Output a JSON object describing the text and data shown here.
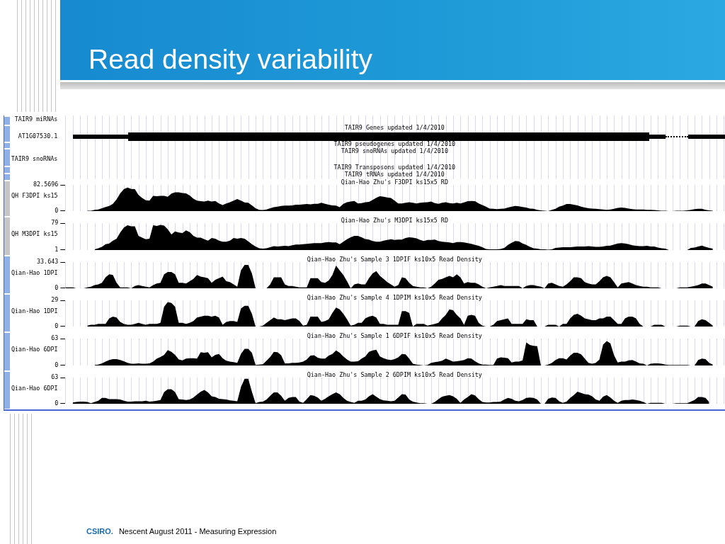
{
  "chart_data": [
    {
      "type": "area",
      "title": "Read density variability",
      "annotations": [
        "TAIR9 miRNAs",
        "AT1G07530.1",
        "TAIR9 snoRNAs",
        "TAIR9 Genes updated 1/4/2010",
        "TAIR9 pseudogenes updated 1/4/2010",
        "TAIR9 snoRNAs updated 1/4/2010",
        "TAIR9 Transposons updated 1/4/2010",
        "TAIR9 tRNAs updated 1/4/2010"
      ],
      "ylabel": "QH F3DPI ks15",
      "ylim": [
        0,
        82.5696
      ],
      "yticks": [
        0,
        82.5696
      ],
      "grid": "x",
      "tick_labels": "y",
      "categories": [
        null,
        null,
        null,
        null,
        null,
        null,
        null,
        null,
        null,
        null,
        null,
        null,
        null,
        null,
        null,
        null,
        null,
        null,
        null,
        null,
        null,
        null,
        null,
        null,
        null,
        null,
        null,
        null,
        null,
        null,
        null,
        null,
        null,
        null,
        null,
        null,
        null,
        null,
        null,
        null,
        null,
        null,
        null,
        null,
        null,
        null,
        null,
        null,
        null,
        null,
        null,
        null,
        null,
        null,
        null,
        null,
        null,
        null,
        null,
        null,
        null,
        null,
        null,
        null,
        null,
        null,
        null,
        null,
        null,
        null,
        null,
        null,
        null,
        null,
        null,
        null,
        null,
        null,
        null,
        null,
        null,
        null,
        null,
        null,
        null,
        null,
        null,
        null,
        null,
        null,
        null,
        null,
        null,
        null,
        null,
        null,
        null,
        null,
        null,
        null,
        null,
        null,
        null,
        null,
        null,
        null,
        null,
        null,
        null,
        null,
        null,
        null,
        null,
        null,
        null,
        null,
        null,
        null,
        null,
        null,
        null,
        null,
        null,
        null,
        null,
        null,
        null,
        null,
        null,
        null,
        null,
        null,
        null,
        null,
        null,
        null,
        null,
        null,
        null,
        null,
        null,
        null,
        null,
        null,
        null,
        null,
        null,
        null,
        null,
        null,
        null,
        null,
        null,
        null,
        null,
        null,
        null,
        null,
        null,
        null,
        null,
        null,
        null,
        null,
        null,
        null,
        null,
        null,
        null,
        null,
        null,
        null,
        null,
        null,
        null,
        null,
        null,
        null,
        null,
        null,
        null
      ],
      "series": [
        {
          "name": "Qian-Hao Zhu's F3DPI ks15x5 RD",
          "color": "#000000",
          "values": [
            null,
            null,
            null,
            null,
            null,
            null,
            1,
            1,
            4,
            5,
            9,
            13,
            16,
            23,
            37,
            56,
            69,
            74,
            70,
            69,
            51,
            41,
            34,
            33,
            48,
            47,
            48,
            48,
            45,
            55,
            59,
            59,
            57,
            56,
            49,
            39,
            33,
            31,
            30,
            33,
            30,
            32,
            24,
            19,
            24,
            28,
            33,
            38,
            33,
            27,
            26,
            18,
            9,
            4,
            3,
            5,
            9,
            12,
            14,
            16,
            17,
            17,
            18,
            20,
            20,
            21,
            22,
            21,
            23,
            23,
            26,
            23,
            20,
            18,
            17,
            12,
            23,
            28,
            30,
            32,
            24,
            25,
            28,
            29,
            35,
            42,
            47,
            45,
            43,
            41,
            33,
            24,
            24,
            26,
            28,
            26,
            24,
            26,
            27,
            28,
            30,
            25,
            23,
            26,
            28,
            25,
            24,
            26,
            24,
            27,
            31,
            32,
            31,
            24,
            19,
            14,
            8,
            7,
            6,
            7,
            8,
            11,
            14,
            16,
            15,
            13,
            11,
            8,
            7,
            4,
            2,
            1,
            0,
            4,
            7,
            14,
            17,
            22,
            22,
            20,
            18,
            14,
            11,
            9,
            8,
            7,
            6,
            5,
            4,
            5,
            7,
            10,
            11,
            10,
            8,
            6,
            5,
            5,
            5,
            4,
            4,
            3,
            2,
            1,
            1,
            0,
            0,
            1,
            1,
            1,
            2,
            4,
            6,
            7,
            7,
            4,
            2,
            1,
            null,
            null,
            null
          ]
        }
      ]
    },
    {
      "type": "area",
      "ylabel": "QH M3DPI ks15",
      "ylim": [
        1,
        79
      ],
      "yticks": [
        1,
        79
      ],
      "grid": "x",
      "tick_labels": "y",
      "categories": [
        null,
        null,
        null,
        null,
        null,
        null,
        null,
        null,
        null,
        null,
        null,
        null,
        null,
        null,
        null,
        null,
        null,
        null,
        null,
        null,
        null,
        null,
        null,
        null,
        null,
        null,
        null,
        null,
        null,
        null,
        null,
        null,
        null,
        null,
        null,
        null,
        null,
        null,
        null,
        null,
        null,
        null,
        null,
        null,
        null,
        null,
        null,
        null,
        null,
        null,
        null,
        null,
        null,
        null,
        null,
        null,
        null,
        null,
        null,
        null,
        null,
        null,
        null,
        null,
        null,
        null,
        null,
        null,
        null,
        null,
        null,
        null,
        null,
        null,
        null,
        null,
        null,
        null,
        null,
        null,
        null,
        null,
        null,
        null,
        null,
        null,
        null,
        null,
        null,
        null,
        null,
        null,
        null,
        null,
        null,
        null,
        null,
        null,
        null,
        null,
        null,
        null,
        null,
        null,
        null,
        null,
        null,
        null,
        null,
        null,
        null,
        null,
        null,
        null,
        null,
        null,
        null,
        null,
        null,
        null,
        null,
        null,
        null,
        null,
        null,
        null,
        null,
        null,
        null,
        null,
        null,
        null,
        null,
        null,
        null,
        null,
        null,
        null,
        null,
        null,
        null,
        null,
        null,
        null,
        null,
        null,
        null,
        null,
        null,
        null,
        null,
        null,
        null,
        null,
        null,
        null,
        null,
        null,
        null,
        null,
        null,
        null,
        null,
        null,
        null,
        null,
        null,
        null,
        null,
        null,
        null,
        null,
        null,
        null,
        null,
        null,
        null,
        null,
        null,
        null,
        null
      ],
      "series": [
        {
          "name": "Qian-Hao Zhu's M3DPI ks15x5 RD",
          "color": "#000000",
          "values": [
            null,
            null,
            null,
            null,
            null,
            null,
            null,
            null,
            3,
            6,
            10,
            18,
            20,
            28,
            34,
            52,
            66,
            73,
            70,
            70,
            42,
            37,
            32,
            34,
            73,
            71,
            74,
            72,
            61,
            46,
            55,
            52,
            50,
            58,
            53,
            42,
            37,
            37,
            32,
            28,
            36,
            34,
            28,
            25,
            25,
            28,
            36,
            34,
            36,
            34,
            26,
            18,
            11,
            6,
            5,
            6,
            9,
            12,
            11,
            12,
            13,
            12,
            15,
            17,
            17,
            18,
            19,
            20,
            21,
            21,
            21,
            23,
            24,
            23,
            23,
            18,
            25,
            32,
            38,
            42,
            42,
            38,
            33,
            31,
            27,
            25,
            25,
            28,
            30,
            32,
            30,
            31,
            31,
            36,
            38,
            37,
            35,
            30,
            27,
            30,
            30,
            31,
            27,
            25,
            24,
            23,
            21,
            24,
            24,
            23,
            21,
            19,
            16,
            13,
            9,
            4,
            3,
            3,
            3,
            4,
            7,
            16,
            22,
            27,
            26,
            20,
            16,
            10,
            6,
            5,
            3,
            3,
            2,
            3,
            7,
            8,
            9,
            9,
            9,
            10,
            11,
            11,
            11,
            12,
            11,
            10,
            10,
            11,
            13,
            14,
            17,
            20,
            21,
            20,
            18,
            15,
            13,
            12,
            12,
            13,
            11,
            11,
            8,
            6,
            5,
            1,
            1,
            1,
            1,
            1,
            1,
            7,
            8,
            11,
            14,
            10,
            7,
            5,
            null,
            null,
            null
          ]
        }
      ]
    },
    {
      "type": "area",
      "ylabel": "Qian-Hao 1DPI",
      "ylim": [
        0,
        33.643
      ],
      "yticks": [
        0,
        33.643
      ],
      "grid": "x",
      "tick_labels": "y",
      "categories": [
        null,
        null,
        null,
        null,
        null,
        null,
        null,
        null,
        null,
        null,
        null,
        null,
        null,
        null,
        null,
        null,
        null,
        null,
        null,
        null,
        null,
        null,
        null,
        null,
        null,
        null,
        null,
        null,
        null,
        null,
        null,
        null,
        null,
        null,
        null,
        null,
        null,
        null,
        null,
        null,
        null,
        null,
        null,
        null,
        null,
        null,
        null,
        null,
        null,
        null,
        null,
        null,
        null,
        null,
        null,
        null,
        null,
        null,
        null,
        null,
        null,
        null,
        null,
        null,
        null,
        null,
        null,
        null,
        null,
        null,
        null,
        null,
        null,
        null,
        null,
        null,
        null,
        null,
        null,
        null,
        null,
        null,
        null,
        null,
        null,
        null,
        null,
        null,
        null,
        null,
        null,
        null,
        null,
        null,
        null,
        null,
        null,
        null,
        null,
        null,
        null,
        null,
        null,
        null,
        null,
        null,
        null,
        null,
        null,
        null,
        null,
        null,
        null,
        null,
        null,
        null,
        null,
        null,
        null,
        null,
        null,
        null,
        null,
        null,
        null,
        null,
        null,
        null,
        null,
        null,
        null,
        null,
        null,
        null,
        null,
        null,
        null,
        null,
        null,
        null,
        null,
        null,
        null,
        null,
        null,
        null,
        null,
        null,
        null,
        null,
        null,
        null,
        null,
        null,
        null,
        null,
        null,
        null,
        null,
        null,
        null,
        null,
        null,
        null,
        null,
        null,
        null,
        null,
        null,
        null,
        null,
        null,
        null,
        null,
        null,
        null,
        null,
        null,
        null,
        null,
        null
      ],
      "series": [
        {
          "name": "Qian-Hao Zhu's Sample 3 1DPIF ks10x5 Read Density",
          "color": "#000000",
          "values": [
            1,
            1,
            1,
            0,
            0,
            0,
            1,
            2,
            4,
            5,
            7,
            14,
            18,
            17,
            7,
            1,
            1,
            1,
            0,
            3,
            4,
            3,
            2,
            1,
            4,
            6,
            7,
            18,
            21,
            21,
            18,
            7,
            7,
            6,
            9,
            12,
            17,
            15,
            14,
            13,
            7,
            11,
            13,
            15,
            9,
            8,
            5,
            2,
            23,
            30,
            30,
            19,
            0,
            0,
            0,
            0,
            5,
            14,
            14,
            14,
            5,
            3,
            3,
            2,
            1,
            1,
            1,
            13,
            13,
            13,
            8,
            7,
            10,
            17,
            29,
            23,
            17,
            9,
            0,
            5,
            6,
            5,
            5,
            13,
            19,
            22,
            16,
            12,
            8,
            5,
            2,
            4,
            14,
            13,
            7,
            3,
            2,
            1,
            1,
            0,
            2,
            6,
            11,
            12,
            14,
            16,
            14,
            18,
            14,
            6,
            8,
            7,
            7,
            5,
            2,
            0,
            1,
            2,
            3,
            4,
            3,
            3,
            3,
            3,
            3,
            0,
            3,
            4,
            4,
            3,
            2,
            0,
            6,
            7,
            5,
            3,
            2,
            5,
            9,
            14,
            14,
            13,
            8,
            6,
            5,
            5,
            9,
            14,
            16,
            14,
            8,
            1,
            6,
            7,
            8,
            6,
            4,
            3,
            2,
            2,
            1,
            1,
            1,
            0,
            0,
            0,
            0,
            0,
            1,
            1,
            1,
            2,
            3,
            4,
            6,
            6,
            4,
            2,
            null,
            null,
            null
          ]
        }
      ]
    },
    {
      "type": "area",
      "ylabel": "Qian-Hao 1DPI",
      "ylim": [
        0,
        29
      ],
      "yticks": [
        0,
        29
      ],
      "grid": "x",
      "tick_labels": "y",
      "categories": [
        null,
        null,
        null,
        null,
        null,
        null,
        null,
        null,
        null,
        null,
        null,
        null,
        null,
        null,
        null,
        null,
        null,
        null,
        null,
        null,
        null,
        null,
        null,
        null,
        null,
        null,
        null,
        null,
        null,
        null,
        null,
        null,
        null,
        null,
        null,
        null,
        null,
        null,
        null,
        null,
        null,
        null,
        null,
        null,
        null,
        null,
        null,
        null,
        null,
        null,
        null,
        null,
        null,
        null,
        null,
        null,
        null,
        null,
        null,
        null,
        null,
        null,
        null,
        null,
        null,
        null,
        null,
        null,
        null,
        null,
        null,
        null,
        null,
        null,
        null,
        null,
        null,
        null,
        null,
        null,
        null,
        null,
        null,
        null,
        null,
        null,
        null,
        null,
        null,
        null,
        null,
        null,
        null,
        null,
        null,
        null,
        null,
        null,
        null,
        null,
        null,
        null,
        null,
        null,
        null,
        null,
        null,
        null,
        null,
        null,
        null,
        null,
        null,
        null,
        null,
        null,
        null,
        null,
        null,
        null,
        null,
        null,
        null,
        null,
        null,
        null,
        null,
        null,
        null,
        null,
        null,
        null,
        null,
        null,
        null,
        null,
        null,
        null,
        null,
        null,
        null,
        null,
        null,
        null,
        null,
        null,
        null,
        null,
        null,
        null,
        null,
        null,
        null,
        null,
        null,
        null,
        null,
        null,
        null,
        null,
        null,
        null,
        null,
        null,
        null,
        null,
        null,
        null,
        null,
        null,
        null,
        null,
        null,
        null,
        null,
        null,
        null,
        null,
        null,
        null,
        null
      ],
      "series": [
        {
          "name": "Qian-Hao Zhu's Sample 4 1DPIM ks10x5 Read Density",
          "color": "#000000",
          "values": [
            null,
            null,
            null,
            null,
            null,
            null,
            1,
            2,
            2,
            3,
            3,
            3,
            9,
            11,
            10,
            5,
            3,
            2,
            2,
            3,
            4,
            3,
            2,
            3,
            3,
            3,
            4,
            22,
            27,
            26,
            22,
            4,
            4,
            3,
            4,
            6,
            10,
            11,
            12,
            12,
            11,
            12,
            10,
            2,
            5,
            6,
            6,
            5,
            20,
            23,
            23,
            14,
            0,
            0,
            1,
            4,
            7,
            10,
            8,
            8,
            7,
            8,
            9,
            9,
            6,
            1,
            2,
            11,
            11,
            11,
            5,
            6,
            8,
            15,
            21,
            19,
            14,
            8,
            1,
            2,
            4,
            4,
            9,
            11,
            12,
            10,
            3,
            3,
            2,
            2,
            2,
            2,
            17,
            17,
            15,
            0,
            3,
            3,
            3,
            1,
            2,
            3,
            4,
            9,
            13,
            19,
            18,
            13,
            9,
            2,
            12,
            13,
            12,
            4,
            1,
            0,
            0,
            2,
            6,
            7,
            8,
            9,
            3,
            3,
            3,
            3,
            8,
            7,
            7,
            0,
            0,
            0,
            2,
            2,
            2,
            0,
            3,
            3,
            9,
            13,
            14,
            12,
            9,
            8,
            7,
            7,
            9,
            9,
            11,
            11,
            7,
            3,
            3,
            9,
            11,
            11,
            9,
            3,
            0,
            0,
            0,
            2,
            2,
            2,
            0,
            0,
            0,
            0,
            1,
            1,
            1,
            0,
            0,
            6,
            8,
            7,
            4,
            1,
            null,
            null,
            null
          ]
        }
      ]
    },
    {
      "type": "area",
      "ylabel": "Qian-Hao 6DPI",
      "ylim": [
        0,
        63
      ],
      "yticks": [
        0,
        63
      ],
      "grid": "x",
      "tick_labels": "y",
      "categories": [
        null,
        null,
        null,
        null,
        null,
        null,
        null,
        null,
        null,
        null,
        null,
        null,
        null,
        null,
        null,
        null,
        null,
        null,
        null,
        null,
        null,
        null,
        null,
        null,
        null,
        null,
        null,
        null,
        null,
        null,
        null,
        null,
        null,
        null,
        null,
        null,
        null,
        null,
        null,
        null,
        null,
        null,
        null,
        null,
        null,
        null,
        null,
        null,
        null,
        null,
        null,
        null,
        null,
        null,
        null,
        null,
        null,
        null,
        null,
        null,
        null,
        null,
        null,
        null,
        null,
        null,
        null,
        null,
        null,
        null,
        null,
        null,
        null,
        null,
        null,
        null,
        null,
        null,
        null,
        null,
        null,
        null,
        null,
        null,
        null,
        null,
        null,
        null,
        null,
        null,
        null,
        null,
        null,
        null,
        null,
        null,
        null,
        null,
        null,
        null,
        null,
        null,
        null,
        null,
        null,
        null,
        null,
        null,
        null,
        null,
        null,
        null,
        null,
        null,
        null,
        null,
        null,
        null,
        null,
        null,
        null,
        null,
        null,
        null,
        null,
        null,
        null,
        null,
        null,
        null,
        null,
        null,
        null,
        null,
        null,
        null,
        null,
        null,
        null,
        null,
        null,
        null,
        null,
        null,
        null,
        null,
        null,
        null,
        null,
        null,
        null,
        null,
        null,
        null,
        null,
        null,
        null,
        null,
        null,
        null,
        null,
        null,
        null,
        null,
        null,
        null,
        null,
        null,
        null,
        null,
        null,
        null,
        null,
        null,
        null,
        null,
        null,
        null,
        null,
        null,
        null
      ],
      "series": [
        {
          "name": "Qian-Hao Zhu's Sample 1 6DPIF ks10x5 Read Density",
          "color": "#000000",
          "values": [
            null,
            null,
            null,
            null,
            null,
            null,
            null,
            null,
            1,
            2,
            5,
            9,
            13,
            15,
            15,
            13,
            10,
            6,
            4,
            4,
            5,
            4,
            4,
            5,
            9,
            16,
            20,
            25,
            36,
            32,
            25,
            14,
            12,
            16,
            17,
            17,
            16,
            31,
            30,
            31,
            19,
            25,
            27,
            17,
            11,
            9,
            8,
            6,
            27,
            39,
            39,
            30,
            1,
            2,
            3,
            11,
            20,
            32,
            31,
            24,
            5,
            5,
            6,
            6,
            7,
            9,
            14,
            23,
            24,
            18,
            16,
            16,
            23,
            27,
            35,
            30,
            21,
            14,
            9,
            9,
            10,
            16,
            21,
            32,
            35,
            37,
            21,
            17,
            14,
            13,
            15,
            19,
            27,
            26,
            16,
            4,
            2,
            1,
            0,
            1,
            6,
            8,
            9,
            11,
            16,
            13,
            9,
            10,
            11,
            13,
            17,
            16,
            10,
            5,
            2,
            2,
            1,
            1,
            16,
            19,
            18,
            17,
            7,
            9,
            9,
            12,
            54,
            48,
            46,
            45,
            0,
            0,
            2,
            6,
            13,
            17,
            17,
            14,
            23,
            30,
            30,
            26,
            16,
            6,
            4,
            6,
            14,
            49,
            57,
            52,
            24,
            7,
            9,
            9,
            12,
            13,
            9,
            5,
            4,
            0,
            4,
            5,
            5,
            4,
            2,
            1,
            1,
            1,
            1,
            1,
            1,
            0,
            0,
            13,
            16,
            15,
            6,
            2,
            null,
            null,
            null
          ]
        }
      ]
    },
    {
      "type": "area",
      "ylabel": "Qian-Hao 6DPI",
      "ylim": [
        0,
        63
      ],
      "yticks": [
        0,
        63
      ],
      "grid": "x",
      "tick_labels": "y",
      "annotations": [
        "CSIRO.",
        "Nescent August 2011 - Measuring Expression"
      ],
      "categories": [
        null,
        null,
        null,
        null,
        null,
        null,
        null,
        null,
        null,
        null,
        null,
        null,
        null,
        null,
        null,
        null,
        null,
        null,
        null,
        null,
        null,
        null,
        null,
        null,
        null,
        null,
        null,
        null,
        null,
        null,
        null,
        null,
        null,
        null,
        null,
        null,
        null,
        null,
        null,
        null,
        null,
        null,
        null,
        null,
        null,
        null,
        null,
        null,
        null,
        null,
        null,
        null,
        null,
        null,
        null,
        null,
        null,
        null,
        null,
        null,
        null,
        null,
        null,
        null,
        null,
        null,
        null,
        null,
        null,
        null,
        null,
        null,
        null,
        null,
        null,
        null,
        null,
        null,
        null,
        null,
        null,
        null,
        null,
        null,
        null,
        null,
        null,
        null,
        null,
        null,
        null,
        null,
        null,
        null,
        null,
        null,
        null,
        null,
        null,
        null,
        null,
        null,
        null,
        null,
        null,
        null,
        null,
        null,
        null,
        null,
        null,
        null,
        null,
        null,
        null,
        null,
        null,
        null,
        null,
        null,
        null,
        null,
        null,
        null,
        null,
        null,
        null,
        null,
        null,
        null,
        null,
        null,
        null,
        null,
        null,
        null,
        null,
        null,
        null,
        null,
        null,
        null,
        null,
        null,
        null,
        null,
        null,
        null,
        null,
        null,
        null,
        null,
        null,
        null,
        null,
        null,
        null,
        null,
        null,
        null,
        null,
        null,
        null,
        null,
        null,
        null,
        null,
        null,
        null,
        null,
        null,
        null,
        null,
        null,
        null,
        null,
        null,
        null,
        null,
        null,
        null
      ],
      "series": [
        {
          "name": "Qian-Hao Zhu's Sample 2 6DPIM ks10x5 Read Density",
          "color": "#000000",
          "values": [
            null,
            null,
            3,
            4,
            5,
            5,
            4,
            1,
            4,
            7,
            14,
            14,
            11,
            11,
            11,
            10,
            7,
            5,
            5,
            6,
            6,
            6,
            7,
            5,
            6,
            7,
            9,
            28,
            35,
            35,
            28,
            11,
            10,
            9,
            10,
            15,
            22,
            29,
            33,
            27,
            18,
            16,
            12,
            11,
            10,
            8,
            7,
            6,
            40,
            60,
            60,
            29,
            1,
            4,
            5,
            10,
            19,
            27,
            27,
            19,
            7,
            14,
            16,
            16,
            5,
            2,
            11,
            21,
            19,
            15,
            7,
            12,
            18,
            23,
            27,
            23,
            14,
            7,
            4,
            2,
            7,
            7,
            10,
            18,
            23,
            17,
            11,
            8,
            7,
            6,
            7,
            15,
            23,
            22,
            10,
            5,
            3,
            1,
            1,
            0,
            0,
            4,
            11,
            17,
            19,
            21,
            18,
            12,
            2,
            10,
            16,
            23,
            20,
            11,
            4,
            3,
            3,
            4,
            4,
            5,
            10,
            14,
            12,
            7,
            6,
            9,
            14,
            15,
            14,
            10,
            0,
            0,
            12,
            15,
            14,
            6,
            2,
            5,
            14,
            21,
            29,
            26,
            23,
            22,
            18,
            10,
            7,
            17,
            21,
            15,
            7,
            2,
            7,
            9,
            9,
            10,
            9,
            7,
            4,
            0,
            2,
            2,
            2,
            2,
            0,
            0,
            0,
            1,
            1,
            1,
            1,
            5,
            9,
            16,
            16,
            14,
            4,
            null,
            null,
            null,
            null
          ]
        }
      ]
    }
  ]
}
